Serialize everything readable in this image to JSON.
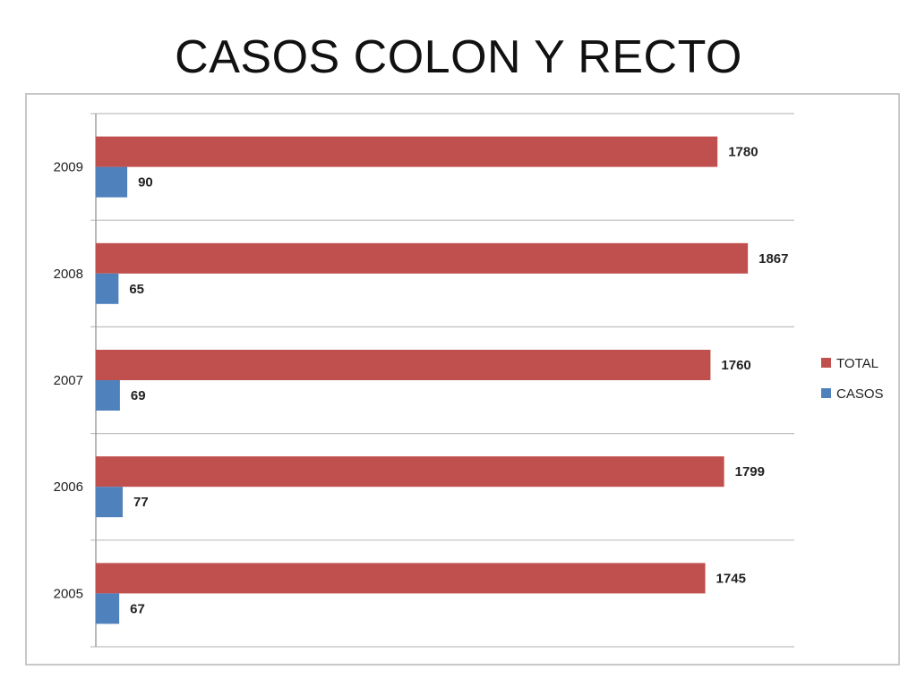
{
  "title": "CASOS COLON Y RECTO",
  "colors": {
    "total": "#c0504d",
    "casos": "#4f81bd",
    "grid": "#bfbfbf",
    "axis": "#9a9a9a"
  },
  "chart_data": {
    "type": "bar",
    "orientation": "horizontal",
    "categories": [
      "2005",
      "2006",
      "2007",
      "2008",
      "2009"
    ],
    "series": [
      {
        "name": "TOTAL",
        "values": [
          1745,
          1799,
          1760,
          1867,
          1780
        ]
      },
      {
        "name": "CASOS",
        "values": [
          67,
          77,
          69,
          65,
          90
        ]
      }
    ],
    "xlim": [
      0,
      2000
    ],
    "grid": true,
    "legend_position": "right",
    "data_labels": true
  }
}
